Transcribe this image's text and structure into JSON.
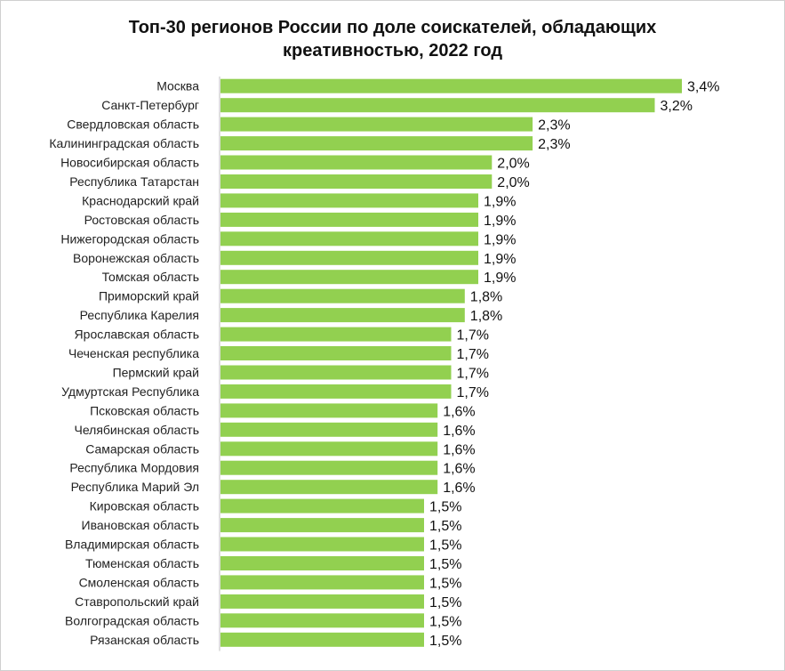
{
  "chart_data": {
    "type": "bar",
    "orientation": "horizontal",
    "title_lines": [
      "Топ-30 регионов России по доле соискателей, обладающих",
      "креативностью, 2022 год"
    ],
    "xlabel": "",
    "ylabel": "",
    "xlim": [
      0,
      3.4
    ],
    "grid": false,
    "legend": "none",
    "bar_color": "#92D050",
    "categories": [
      "Москва",
      "Санкт-Петербург",
      "Свердловская область",
      "Калининградская область",
      "Новосибирская область",
      "Республика Татарстан",
      "Краснодарский край",
      "Ростовская область",
      "Нижегородская область",
      "Воронежская область",
      "Томская область",
      "Приморский край",
      "Республика Карелия",
      "Ярославская область",
      "Чеченская республика",
      "Пермский край",
      "Удмуртская Республика",
      "Псковская область",
      "Челябинская область",
      "Самарская область",
      "Республика Мордовия",
      "Республика Марий Эл",
      "Кировская область",
      "Ивановская область",
      "Владимирская область",
      "Тюменская область",
      "Смоленская область",
      "Ставропольский край",
      "Волгоградская область",
      "Рязанская область"
    ],
    "values": [
      3.4,
      3.2,
      2.3,
      2.3,
      2.0,
      2.0,
      1.9,
      1.9,
      1.9,
      1.9,
      1.9,
      1.8,
      1.8,
      1.7,
      1.7,
      1.7,
      1.7,
      1.6,
      1.6,
      1.6,
      1.6,
      1.6,
      1.5,
      1.5,
      1.5,
      1.5,
      1.5,
      1.5,
      1.5,
      1.5
    ],
    "value_labels": [
      "3,4%",
      "3,2%",
      "2,3%",
      "2,3%",
      "2,0%",
      "2,0%",
      "1,9%",
      "1,9%",
      "1,9%",
      "1,9%",
      "1,9%",
      "1,8%",
      "1,8%",
      "1,7%",
      "1,7%",
      "1,7%",
      "1,7%",
      "1,6%",
      "1,6%",
      "1,6%",
      "1,6%",
      "1,6%",
      "1,5%",
      "1,5%",
      "1,5%",
      "1,5%",
      "1,5%",
      "1,5%",
      "1,5%",
      "1,5%"
    ]
  }
}
